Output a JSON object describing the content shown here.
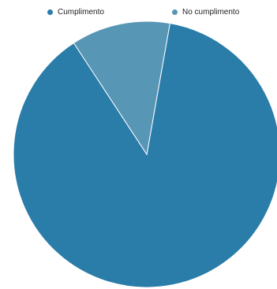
{
  "chart_data": {
    "type": "pie",
    "legend_position": "top",
    "slices": [
      {
        "label": "Cumplimento",
        "value": 88,
        "color": "#2a7ca9"
      },
      {
        "label": "No cumplimento",
        "value": 12,
        "color": "#5796b5"
      }
    ]
  }
}
